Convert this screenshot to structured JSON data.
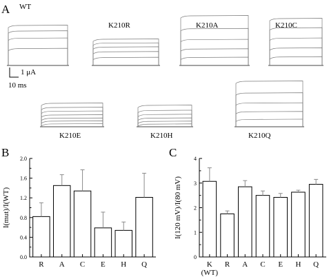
{
  "panels": {
    "a": {
      "letter": "A"
    },
    "b": {
      "letter": "B"
    },
    "c": {
      "letter": "C"
    }
  },
  "traces": [
    {
      "label": "WT",
      "levels": [
        0.0,
        0.42,
        0.68,
        0.86,
        1.0
      ]
    },
    {
      "label": "K210R",
      "levels": [
        0.0,
        0.3,
        0.52,
        0.7,
        0.85,
        1.0
      ]
    },
    {
      "label": "K210A",
      "levels": [
        0.0,
        0.16,
        0.33,
        0.52,
        0.74,
        1.0
      ]
    },
    {
      "label": "K210C",
      "levels": [
        0.0,
        0.18,
        0.37,
        0.58,
        0.8,
        1.0
      ]
    },
    {
      "label": "K210E",
      "levels": [
        0.0,
        0.12,
        0.24,
        0.36,
        0.5,
        0.66,
        0.82,
        1.0
      ]
    },
    {
      "label": "K210H",
      "levels": [
        0.0,
        0.12,
        0.25,
        0.4,
        0.57,
        0.76,
        1.0
      ]
    },
    {
      "label": "K210Q",
      "levels": [
        0.0,
        0.16,
        0.33,
        0.52,
        0.74,
        1.0
      ]
    }
  ],
  "scale_bar": {
    "current": "1 μA",
    "time": "10 ms"
  },
  "chart_data": [
    {
      "type": "bar",
      "panel": "B",
      "categories": [
        "R",
        "A",
        "C",
        "E",
        "H",
        "Q"
      ],
      "values": [
        0.82,
        1.45,
        1.34,
        0.59,
        0.54,
        1.21
      ],
      "errors": [
        0.28,
        0.22,
        0.43,
        0.32,
        0.17,
        0.49
      ],
      "ylabel": "I(mut)/I(WT)",
      "ylim": [
        0,
        2.0
      ],
      "yticks": [
        "0.0",
        "0.4",
        "0.8",
        "1.2",
        "1.6",
        "2.0"
      ]
    },
    {
      "type": "bar",
      "panel": "C",
      "categories": [
        "K",
        "R",
        "A",
        "C",
        "E",
        "H",
        "Q"
      ],
      "sublabels": [
        "(WT)",
        "",
        "",
        "",
        "",
        "",
        ""
      ],
      "values": [
        3.07,
        1.75,
        2.85,
        2.5,
        2.42,
        2.63,
        2.95
      ],
      "errors": [
        0.55,
        0.12,
        0.25,
        0.18,
        0.16,
        0.08,
        0.2
      ],
      "ylabel": "I(120 mV)/I(80 mV)",
      "ylim": [
        0,
        4
      ],
      "yticks": [
        "0",
        "1",
        "2",
        "3",
        "4"
      ]
    }
  ]
}
